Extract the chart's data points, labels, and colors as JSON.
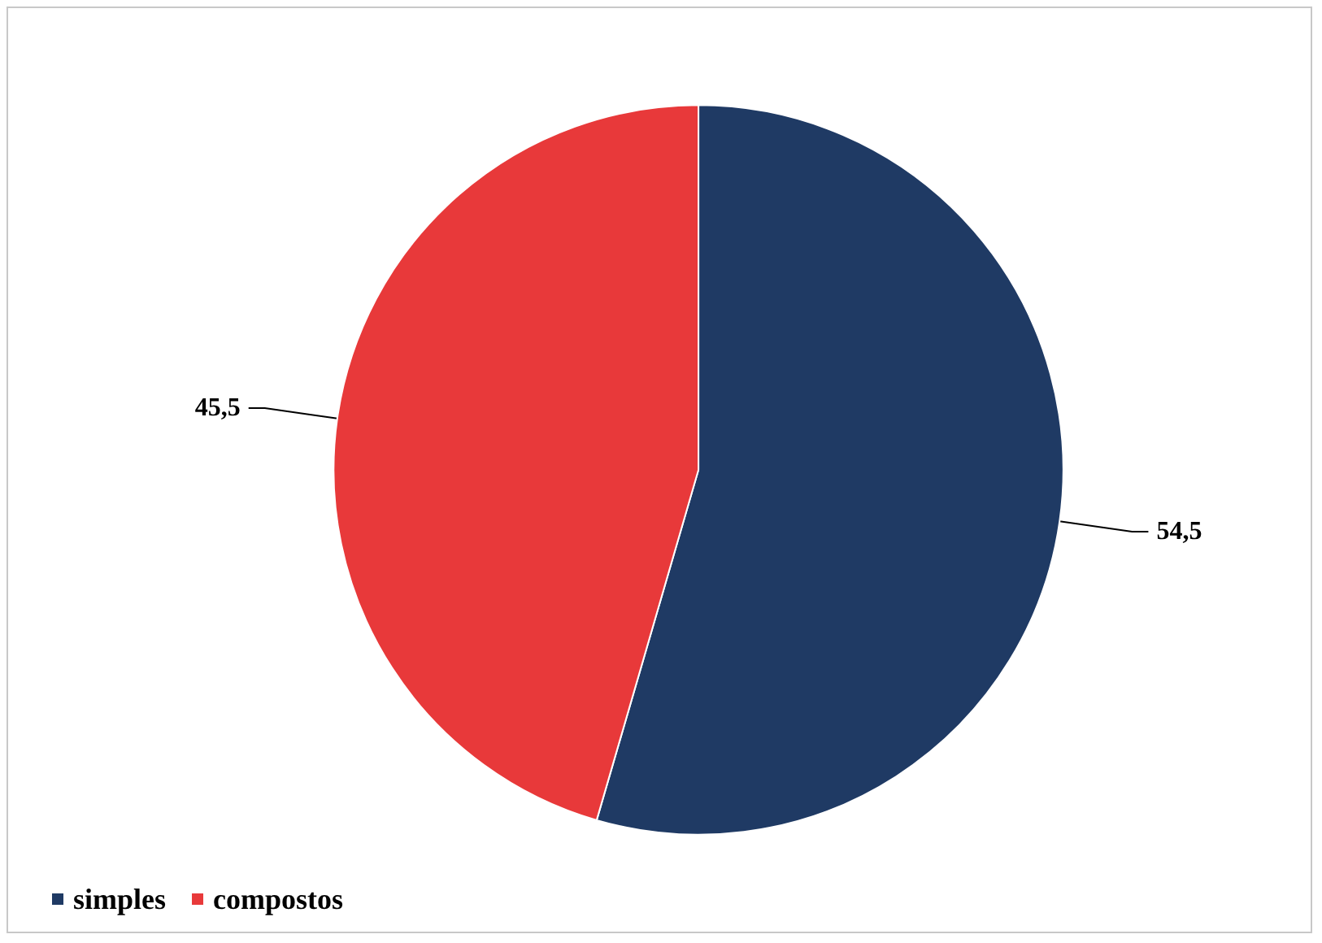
{
  "chart_data": {
    "type": "pie",
    "categories": [
      "simples",
      "compostos"
    ],
    "values": [
      54.5,
      45.5
    ],
    "colors": [
      "#1f3a64",
      "#e8393a"
    ],
    "value_labels": [
      "54,5",
      "45,5"
    ],
    "legend": "bottom left"
  }
}
